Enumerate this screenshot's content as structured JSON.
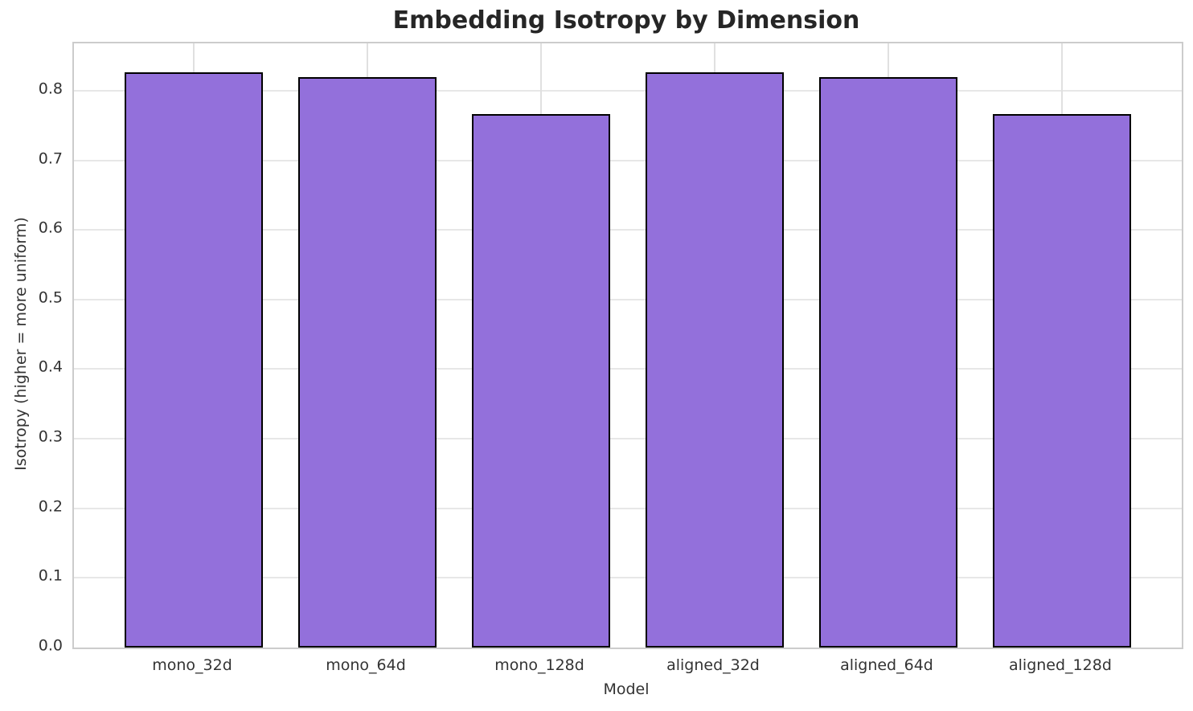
{
  "chart_data": {
    "type": "bar",
    "title": "Embedding Isotropy by Dimension",
    "xlabel": "Model",
    "ylabel": "Isotropy (higher = more uniform)",
    "categories": [
      "mono_32d",
      "mono_64d",
      "mono_128d",
      "aligned_32d",
      "aligned_64d",
      "aligned_128d"
    ],
    "values": [
      0.826,
      0.819,
      0.767,
      0.826,
      0.819,
      0.767
    ],
    "yticks": [
      0.0,
      0.1,
      0.2,
      0.3,
      0.4,
      0.5,
      0.6,
      0.7,
      0.8
    ],
    "ytick_labels": [
      "0.0",
      "0.1",
      "0.2",
      "0.3",
      "0.4",
      "0.5",
      "0.6",
      "0.7",
      "0.8"
    ],
    "ylim": [
      0,
      0.868
    ],
    "xlim": [
      -0.69,
      5.69
    ],
    "bar_width": 0.8,
    "grid": true,
    "legend": null,
    "colors": {
      "bar_fill": "#9370DB",
      "bar_edge": "#000000",
      "grid_h": "#e7e7e7",
      "grid_v": "#e0e0e0",
      "spine": "#cccccc",
      "title_text": "#262626",
      "tick_text": "#333333"
    }
  }
}
